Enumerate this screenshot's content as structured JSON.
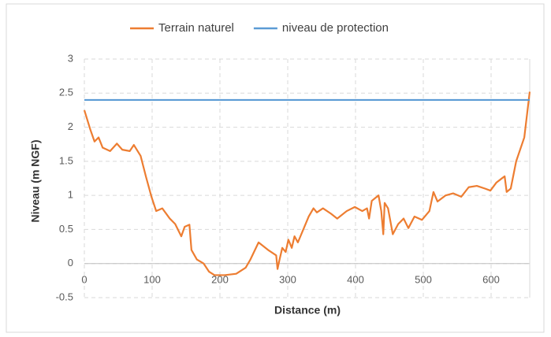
{
  "chart_data": {
    "type": "line",
    "xlabel": "Distance (m)",
    "ylabel": "Niveau (m NGF)",
    "xlim": [
      0,
      657
    ],
    "xticks": [
      0,
      100,
      200,
      300,
      400,
      500,
      600
    ],
    "ylim": [
      -0.5,
      3
    ],
    "yticks": [
      3,
      2.5,
      2,
      1.5,
      1,
      0.5,
      0,
      -0.5
    ],
    "grid": true,
    "legend": "top",
    "series": [
      {
        "name": "Terrain naturel",
        "color": "#ed7d31",
        "x": [
          0,
          9,
          15,
          21,
          27,
          38,
          48,
          56,
          67,
          73,
          83,
          91,
          99,
          106,
          115,
          126,
          134,
          143,
          148,
          155,
          158,
          166,
          176,
          184,
          192,
          207,
          224,
          238,
          245,
          257,
          271,
          283,
          285,
          288,
          292,
          297,
          301,
          306,
          310,
          315,
          323,
          331,
          338,
          343,
          352,
          364,
          373,
          387,
          399,
          410,
          417,
          420,
          424,
          434,
          438,
          441,
          443,
          448,
          455,
          463,
          471,
          478,
          487,
          498,
          509,
          515,
          521,
          533,
          544,
          556,
          567,
          579,
          591,
          599,
          608,
          620,
          623,
          629,
          637,
          649,
          657
        ],
        "values": [
          2.25,
          1.96,
          1.79,
          1.85,
          1.7,
          1.65,
          1.76,
          1.67,
          1.65,
          1.74,
          1.58,
          1.27,
          0.98,
          0.77,
          0.81,
          0.66,
          0.58,
          0.4,
          0.54,
          0.57,
          0.2,
          0.06,
          0,
          -0.12,
          -0.17,
          -0.17,
          -0.15,
          -0.06,
          0.06,
          0.31,
          0.2,
          0.12,
          -0.08,
          0.06,
          0.23,
          0.17,
          0.35,
          0.23,
          0.4,
          0.31,
          0.5,
          0.69,
          0.81,
          0.75,
          0.81,
          0.73,
          0.66,
          0.77,
          0.83,
          0.77,
          0.81,
          0.66,
          0.92,
          1,
          0.77,
          0.43,
          0.89,
          0.81,
          0.43,
          0.58,
          0.66,
          0.52,
          0.69,
          0.64,
          0.77,
          1.05,
          0.91,
          1,
          1.03,
          0.98,
          1.12,
          1.14,
          1.1,
          1.07,
          1.19,
          1.28,
          1.05,
          1.1,
          1.5,
          1.85,
          2.52
        ]
      },
      {
        "name": "niveau de protection",
        "color": "#5b9bd5",
        "x": [
          0,
          657
        ],
        "values": [
          2.4,
          2.4
        ]
      }
    ]
  }
}
